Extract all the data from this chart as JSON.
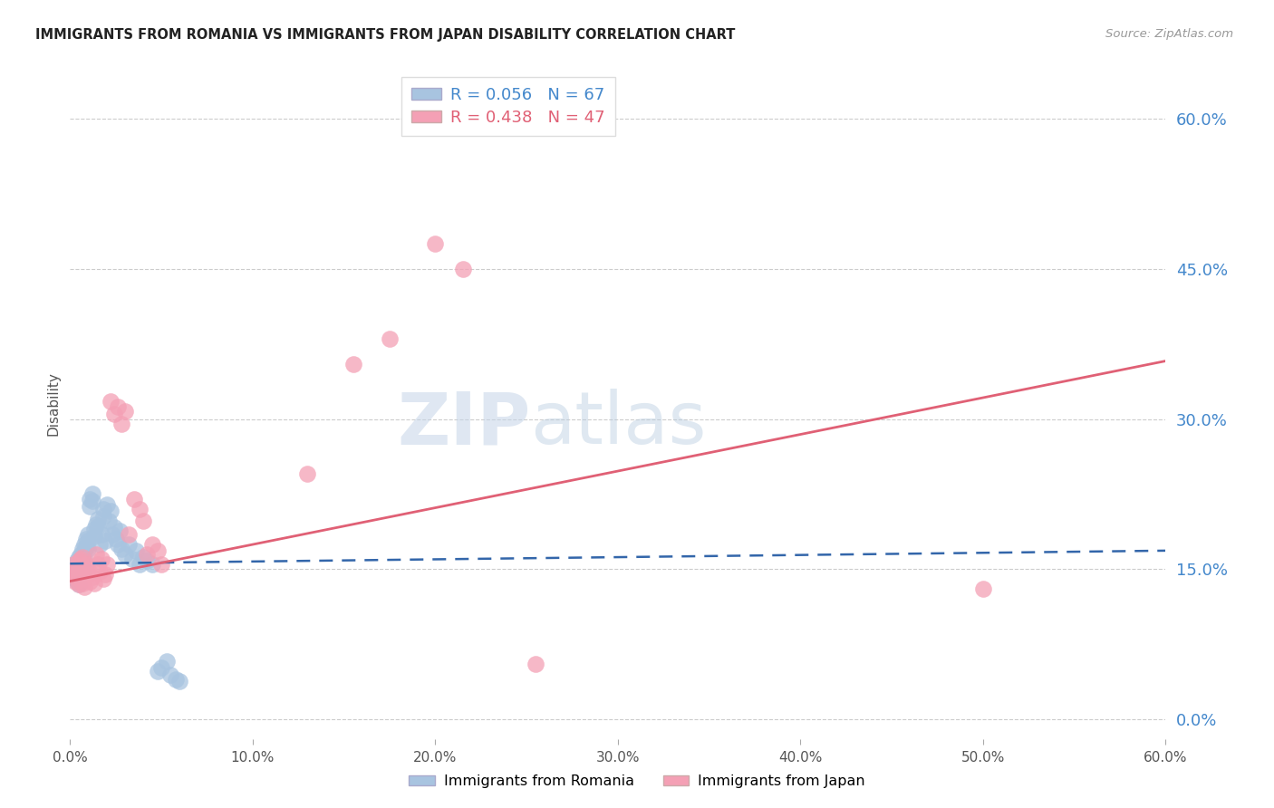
{
  "title": "IMMIGRANTS FROM ROMANIA VS IMMIGRANTS FROM JAPAN DISABILITY CORRELATION CHART",
  "source": "Source: ZipAtlas.com",
  "ylabel": "Disability",
  "xlim": [
    0.0,
    0.6
  ],
  "ylim": [
    -0.02,
    0.65
  ],
  "yticks": [
    0.0,
    0.15,
    0.3,
    0.45,
    0.6
  ],
  "ytick_labels": [
    "0.0%",
    "15.0%",
    "30.0%",
    "45.0%",
    "60.0%"
  ],
  "xticks": [
    0.0,
    0.1,
    0.2,
    0.3,
    0.4,
    0.5,
    0.6
  ],
  "xtick_labels": [
    "0.0%",
    "10.0%",
    "20.0%",
    "30.0%",
    "40.0%",
    "50.0%",
    "60.0%"
  ],
  "romania_R": 0.056,
  "romania_N": 67,
  "japan_R": 0.438,
  "japan_N": 47,
  "romania_color": "#a8c4e0",
  "japan_color": "#f4a0b5",
  "romania_line_color": "#3366aa",
  "japan_line_color": "#e06075",
  "watermark_zip": "ZIP",
  "watermark_atlas": "atlas",
  "romania_x": [
    0.001,
    0.002,
    0.002,
    0.003,
    0.003,
    0.003,
    0.004,
    0.004,
    0.004,
    0.004,
    0.005,
    0.005,
    0.005,
    0.005,
    0.005,
    0.006,
    0.006,
    0.006,
    0.007,
    0.007,
    0.007,
    0.007,
    0.008,
    0.008,
    0.008,
    0.009,
    0.009,
    0.01,
    0.01,
    0.01,
    0.011,
    0.011,
    0.012,
    0.012,
    0.013,
    0.013,
    0.014,
    0.015,
    0.015,
    0.016,
    0.017,
    0.018,
    0.018,
    0.019,
    0.02,
    0.021,
    0.022,
    0.023,
    0.024,
    0.025,
    0.026,
    0.027,
    0.028,
    0.03,
    0.032,
    0.034,
    0.036,
    0.038,
    0.04,
    0.042,
    0.045,
    0.048,
    0.05,
    0.053,
    0.055,
    0.058,
    0.06
  ],
  "romania_y": [
    0.148,
    0.152,
    0.145,
    0.155,
    0.147,
    0.14,
    0.158,
    0.143,
    0.15,
    0.138,
    0.162,
    0.156,
    0.149,
    0.142,
    0.135,
    0.165,
    0.16,
    0.153,
    0.17,
    0.163,
    0.156,
    0.148,
    0.175,
    0.168,
    0.16,
    0.18,
    0.172,
    0.185,
    0.178,
    0.17,
    0.22,
    0.213,
    0.225,
    0.218,
    0.19,
    0.183,
    0.195,
    0.2,
    0.193,
    0.175,
    0.185,
    0.21,
    0.203,
    0.178,
    0.215,
    0.198,
    0.208,
    0.185,
    0.192,
    0.18,
    0.175,
    0.188,
    0.17,
    0.165,
    0.175,
    0.16,
    0.168,
    0.155,
    0.162,
    0.158,
    0.155,
    0.048,
    0.052,
    0.058,
    0.044,
    0.04,
    0.038
  ],
  "japan_x": [
    0.001,
    0.002,
    0.003,
    0.003,
    0.004,
    0.004,
    0.005,
    0.005,
    0.006,
    0.006,
    0.007,
    0.007,
    0.008,
    0.008,
    0.009,
    0.01,
    0.01,
    0.011,
    0.012,
    0.013,
    0.014,
    0.015,
    0.016,
    0.017,
    0.018,
    0.019,
    0.02,
    0.022,
    0.024,
    0.026,
    0.028,
    0.03,
    0.032,
    0.035,
    0.038,
    0.04,
    0.042,
    0.045,
    0.048,
    0.05,
    0.13,
    0.155,
    0.175,
    0.2,
    0.215,
    0.255,
    0.5
  ],
  "japan_y": [
    0.148,
    0.155,
    0.142,
    0.138,
    0.152,
    0.145,
    0.158,
    0.135,
    0.16,
    0.14,
    0.162,
    0.136,
    0.148,
    0.132,
    0.155,
    0.15,
    0.145,
    0.138,
    0.142,
    0.136,
    0.165,
    0.155,
    0.148,
    0.16,
    0.14,
    0.145,
    0.155,
    0.318,
    0.305,
    0.312,
    0.295,
    0.308,
    0.185,
    0.22,
    0.21,
    0.198,
    0.165,
    0.175,
    0.168,
    0.155,
    0.245,
    0.355,
    0.38,
    0.475,
    0.45,
    0.055,
    0.13
  ],
  "romania_trend": [
    0.0,
    0.6
  ],
  "romania_trend_y": [
    0.1555,
    0.1685
  ],
  "japan_trend": [
    0.0,
    0.6
  ],
  "japan_trend_y": [
    0.138,
    0.358
  ]
}
